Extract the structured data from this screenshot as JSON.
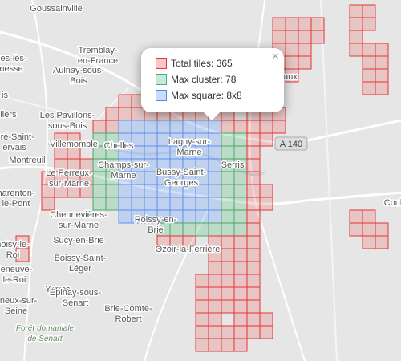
{
  "map": {
    "places": [
      {
        "lines": [
          "Goussainville"
        ]
      },
      {
        "lines": [
          "Tremblay-",
          "en-France"
        ]
      },
      {
        "lines": [
          "ges-lès-",
          "nesse"
        ]
      },
      {
        "lines": [
          "is"
        ]
      },
      {
        "lines": [
          "Aulnay-sous-",
          "Bois"
        ]
      },
      {
        "lines": [
          "illiers"
        ]
      },
      {
        "lines": [
          "Les Pavillons-",
          "sous-Bois"
        ]
      },
      {
        "lines": [
          "Pré-Saint-",
          "ervais"
        ]
      },
      {
        "lines": [
          "Villemomble"
        ]
      },
      {
        "lines": [
          "Montreuil"
        ]
      },
      {
        "lines": [
          "Le Perreux-",
          "sur-Marne"
        ]
      },
      {
        "lines": [
          "harenton-",
          "le-Pont"
        ]
      },
      {
        "lines": [
          "Chennevières-",
          "sur-Marne"
        ]
      },
      {
        "lines": [
          "Sucy-en-Brie"
        ]
      },
      {
        "lines": [
          "hoisy-le-",
          "Roi"
        ]
      },
      {
        "lines": [
          "Boissy-Saint-",
          "Léger"
        ]
      },
      {
        "lines": [
          "lleneuve-",
          "le-Roi"
        ]
      },
      {
        "lines": [
          "Yerres"
        ]
      },
      {
        "lines": [
          "gneux-sur-",
          "Seine"
        ]
      },
      {
        "lines": [
          "Épinay-sous-",
          "Sénart"
        ]
      },
      {
        "lines": [
          "Forêt domaniale",
          "de Sénart"
        ]
      },
      {
        "lines": [
          "Brie-Comte-",
          "Robert"
        ]
      },
      {
        "lines": [
          "Chelles"
        ]
      },
      {
        "lines": [
          "Champs-sur-",
          "Marne"
        ]
      },
      {
        "lines": [
          "Lagny-sur-",
          "Marne"
        ]
      },
      {
        "lines": [
          "Bussy-Saint-",
          "Georges"
        ]
      },
      {
        "lines": [
          "Serris"
        ]
      },
      {
        "lines": [
          "Roissy-en-",
          "Brie"
        ]
      },
      {
        "lines": [
          "Ozoir-la-Ferrière"
        ]
      },
      {
        "lines": [
          "aux"
        ]
      },
      {
        "lines": [
          "Coul"
        ]
      }
    ],
    "road_shields": [
      "A 140"
    ]
  },
  "popup": {
    "close": "×",
    "items": [
      "Total tiles: 365",
      "Max cluster: 78",
      "Max square: 8x8"
    ]
  }
}
